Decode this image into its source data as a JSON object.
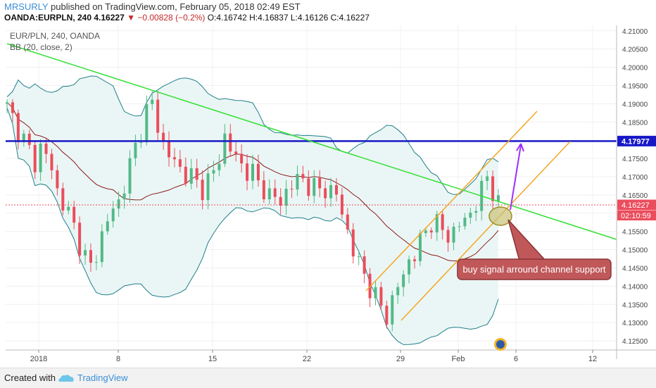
{
  "header": {
    "author": "MRSURLY",
    "published_text": "published on TradingView.com, February 05, 2018 02:49 EST",
    "symbol": "OANDA:EURPLN, 240",
    "last_price": "4.16227",
    "change": "−0.00828 (−0.2%)",
    "ohlc": "O:4.16742 H:4.16837 L:4.16126 C:4.16227"
  },
  "legend": {
    "main": "EUR/PLN, 240, OANDA",
    "indicator": "BB (20, close, 2)"
  },
  "price_badges": {
    "resistance": "4.17977",
    "current": "4.16227",
    "countdown": "02:10:59"
  },
  "annotation": "buy signal arround channel support",
  "footer": {
    "created_with": "Created with",
    "brand": "TradingView"
  },
  "colors": {
    "up": "#53b987",
    "down": "#eb4d5c",
    "band": "#207f8a",
    "band_fill": "#e6f4f3",
    "basis": "#8b1a1a",
    "trendline": "#33e033",
    "resistance": "#1818c8",
    "channel": "#f5a623",
    "arrow": "#9b30ff",
    "callout": "#c0585a"
  },
  "chart_data": {
    "type": "candlestick",
    "title": "EUR/PLN, 240, OANDA",
    "indicator": "BB (20, close, 2)",
    "x_tick_labels": [
      "2018",
      "8",
      "15",
      "22",
      "29",
      "Feb",
      "6",
      "12"
    ],
    "y_ticks": [
      "4.21000",
      "4.20500",
      "4.20000",
      "4.19500",
      "4.19000",
      "4.18500",
      "4.18000",
      "4.17500",
      "4.17000",
      "4.16500",
      "4.16000",
      "4.15500",
      "4.15000",
      "4.14500",
      "4.14000",
      "4.13500",
      "4.13000",
      "4.12500"
    ],
    "ylim": [
      4.1225,
      4.2115
    ],
    "close_path": [
      4.189,
      4.186,
      4.183,
      4.18,
      4.177,
      4.174,
      4.178,
      4.176,
      4.172,
      4.166,
      4.163,
      4.16,
      4.156,
      4.152,
      4.148,
      4.145,
      4.149,
      4.154,
      4.158,
      4.161,
      4.163,
      4.168,
      4.173,
      4.178,
      4.183,
      4.188,
      4.19,
      4.184,
      4.179,
      4.176,
      4.174,
      4.172,
      4.171,
      4.17,
      4.168,
      4.167,
      4.169,
      4.171,
      4.175,
      4.181,
      4.178,
      4.175,
      4.173,
      4.172,
      4.171,
      4.168,
      4.167,
      4.165,
      4.164,
      4.163,
      4.166,
      4.168,
      4.169,
      4.169,
      4.168,
      4.167,
      4.166,
      4.167,
      4.166,
      4.165,
      4.16,
      4.155,
      4.15,
      4.146,
      4.143,
      4.14,
      4.137,
      4.134,
      4.132,
      4.136,
      4.14,
      4.143,
      4.147,
      4.149,
      4.152,
      4.155,
      4.158,
      4.157,
      4.155,
      4.154,
      4.155,
      4.157,
      4.158,
      4.16,
      4.163,
      4.166,
      4.17,
      4.1665,
      4.16227
    ],
    "resistance_level": 4.17977,
    "current_price": 4.16227,
    "annotation": "buy signal arround channel support"
  }
}
